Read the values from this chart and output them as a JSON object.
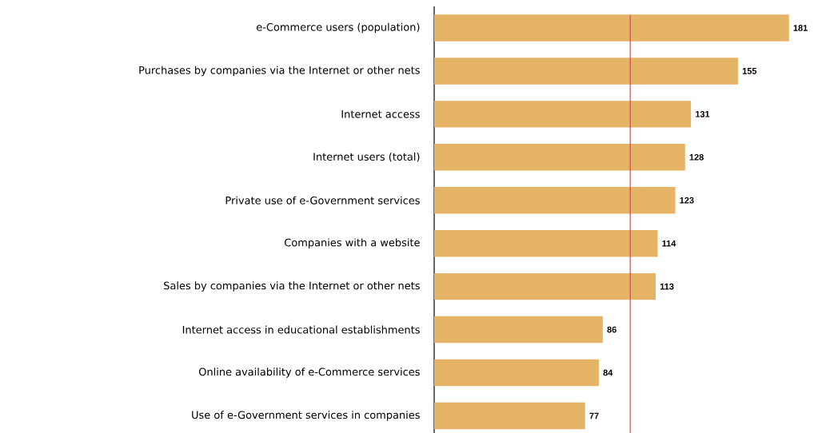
{
  "chart_data": {
    "type": "bar",
    "orientation": "horizontal",
    "categories": [
      "e-Commerce users (population)",
      "Purchases by companies via the Internet or other nets",
      "Internet access",
      "Internet users (total)",
      "Private use of e-Government services",
      "Companies with a website",
      "Sales by companies via the Internet or other nets",
      "Internet access in educational establishments",
      "Online availability of e-Commerce services",
      "Use of e-Government services in companies"
    ],
    "values": [
      181,
      155,
      131,
      128,
      123,
      114,
      113,
      86,
      84,
      77
    ],
    "color": "#e5b467",
    "data_labels": true,
    "ref_lines": [
      {
        "axis": "x",
        "value": 100,
        "color": "#c0504d"
      }
    ]
  }
}
